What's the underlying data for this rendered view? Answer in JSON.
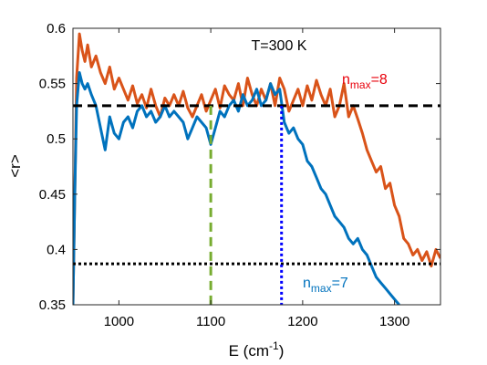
{
  "chart_data": {
    "type": "line",
    "xlabel_main": "E (cm",
    "xlabel_sup": "-1",
    "xlabel_end": ")",
    "ylabel": "<r>",
    "xlim": [
      950,
      1350
    ],
    "ylim": [
      0.35,
      0.6
    ],
    "xticks": [
      1000,
      1100,
      1200,
      1300
    ],
    "yticks": [
      0.35,
      0.4,
      0.45,
      0.5,
      0.55,
      0.6
    ],
    "ytick_labels": [
      "0.35",
      "0.4",
      "0.45",
      "0.5",
      "0.55",
      "0.6"
    ],
    "grid": false,
    "title_annotation": "T=300 K",
    "series": [
      {
        "name_base": "n",
        "name_sub": "max",
        "name_value": "=8",
        "color": "#D95319",
        "x": [
          950,
          952,
          954,
          957,
          960,
          963,
          966,
          970,
          975,
          980,
          985,
          990,
          995,
          1000,
          1005,
          1010,
          1015,
          1020,
          1025,
          1030,
          1035,
          1040,
          1045,
          1050,
          1055,
          1060,
          1065,
          1070,
          1075,
          1080,
          1085,
          1090,
          1095,
          1100,
          1105,
          1110,
          1115,
          1120,
          1125,
          1130,
          1135,
          1140,
          1145,
          1150,
          1155,
          1160,
          1165,
          1170,
          1175,
          1180,
          1185,
          1190,
          1195,
          1200,
          1205,
          1210,
          1215,
          1220,
          1225,
          1230,
          1235,
          1240,
          1245,
          1250,
          1255,
          1260,
          1265,
          1270,
          1275,
          1280,
          1285,
          1290,
          1295,
          1300,
          1305,
          1310,
          1315,
          1320,
          1325,
          1330,
          1335,
          1340,
          1345,
          1350
        ],
        "y": [
          0.35,
          0.45,
          0.555,
          0.595,
          0.58,
          0.57,
          0.585,
          0.565,
          0.575,
          0.56,
          0.55,
          0.565,
          0.545,
          0.555,
          0.545,
          0.535,
          0.548,
          0.532,
          0.54,
          0.528,
          0.545,
          0.53,
          0.52,
          0.537,
          0.53,
          0.54,
          0.53,
          0.543,
          0.528,
          0.52,
          0.53,
          0.54,
          0.525,
          0.535,
          0.545,
          0.528,
          0.548,
          0.54,
          0.535,
          0.55,
          0.53,
          0.555,
          0.54,
          0.53,
          0.545,
          0.535,
          0.55,
          0.53,
          0.555,
          0.545,
          0.525,
          0.535,
          0.545,
          0.53,
          0.548,
          0.535,
          0.553,
          0.54,
          0.53,
          0.545,
          0.52,
          0.53,
          0.55,
          0.52,
          0.53,
          0.518,
          0.505,
          0.49,
          0.48,
          0.47,
          0.475,
          0.455,
          0.46,
          0.44,
          0.43,
          0.41,
          0.405,
          0.395,
          0.4,
          0.39,
          0.398,
          0.385,
          0.4,
          0.392
        ]
      },
      {
        "name_base": "n",
        "name_sub": "max",
        "name_value": "=7",
        "color": "#0072BD",
        "x": [
          950,
          952,
          954,
          957,
          960,
          963,
          966,
          970,
          975,
          980,
          985,
          990,
          995,
          1000,
          1005,
          1010,
          1015,
          1020,
          1025,
          1030,
          1035,
          1040,
          1045,
          1050,
          1055,
          1060,
          1065,
          1070,
          1075,
          1080,
          1085,
          1090,
          1095,
          1100,
          1105,
          1110,
          1115,
          1120,
          1125,
          1130,
          1135,
          1140,
          1145,
          1150,
          1155,
          1160,
          1165,
          1170,
          1175,
          1180,
          1185,
          1190,
          1195,
          1200,
          1205,
          1210,
          1215,
          1220,
          1225,
          1230,
          1235,
          1240,
          1245,
          1250,
          1255,
          1260,
          1265,
          1270,
          1275,
          1280,
          1285,
          1290,
          1295,
          1300,
          1305
        ],
        "y": [
          0.35,
          0.45,
          0.53,
          0.56,
          0.55,
          0.545,
          0.55,
          0.54,
          0.53,
          0.51,
          0.49,
          0.52,
          0.505,
          0.5,
          0.515,
          0.52,
          0.51,
          0.525,
          0.53,
          0.52,
          0.525,
          0.515,
          0.52,
          0.53,
          0.52,
          0.525,
          0.52,
          0.515,
          0.5,
          0.51,
          0.52,
          0.515,
          0.51,
          0.495,
          0.51,
          0.525,
          0.52,
          0.53,
          0.535,
          0.525,
          0.54,
          0.53,
          0.535,
          0.545,
          0.53,
          0.535,
          0.55,
          0.54,
          0.545,
          0.515,
          0.505,
          0.51,
          0.5,
          0.495,
          0.48,
          0.475,
          0.465,
          0.455,
          0.45,
          0.44,
          0.43,
          0.425,
          0.42,
          0.41,
          0.405,
          0.41,
          0.4,
          0.395,
          0.385,
          0.375,
          0.37,
          0.365,
          0.36,
          0.355,
          0.35
        ]
      }
    ],
    "reference_lines": [
      {
        "orientation": "horizontal",
        "value": 0.53,
        "style": "dashed",
        "color": "#000000"
      },
      {
        "orientation": "horizontal",
        "value": 0.387,
        "style": "dotted",
        "color": "#000000"
      },
      {
        "orientation": "vertical",
        "value": 1100,
        "style": "dashed",
        "color": "#77AC30",
        "y_top": 0.53
      },
      {
        "orientation": "vertical",
        "value": 1177,
        "style": "dotted",
        "color": "#0000FF",
        "y_top": 0.53
      }
    ]
  }
}
